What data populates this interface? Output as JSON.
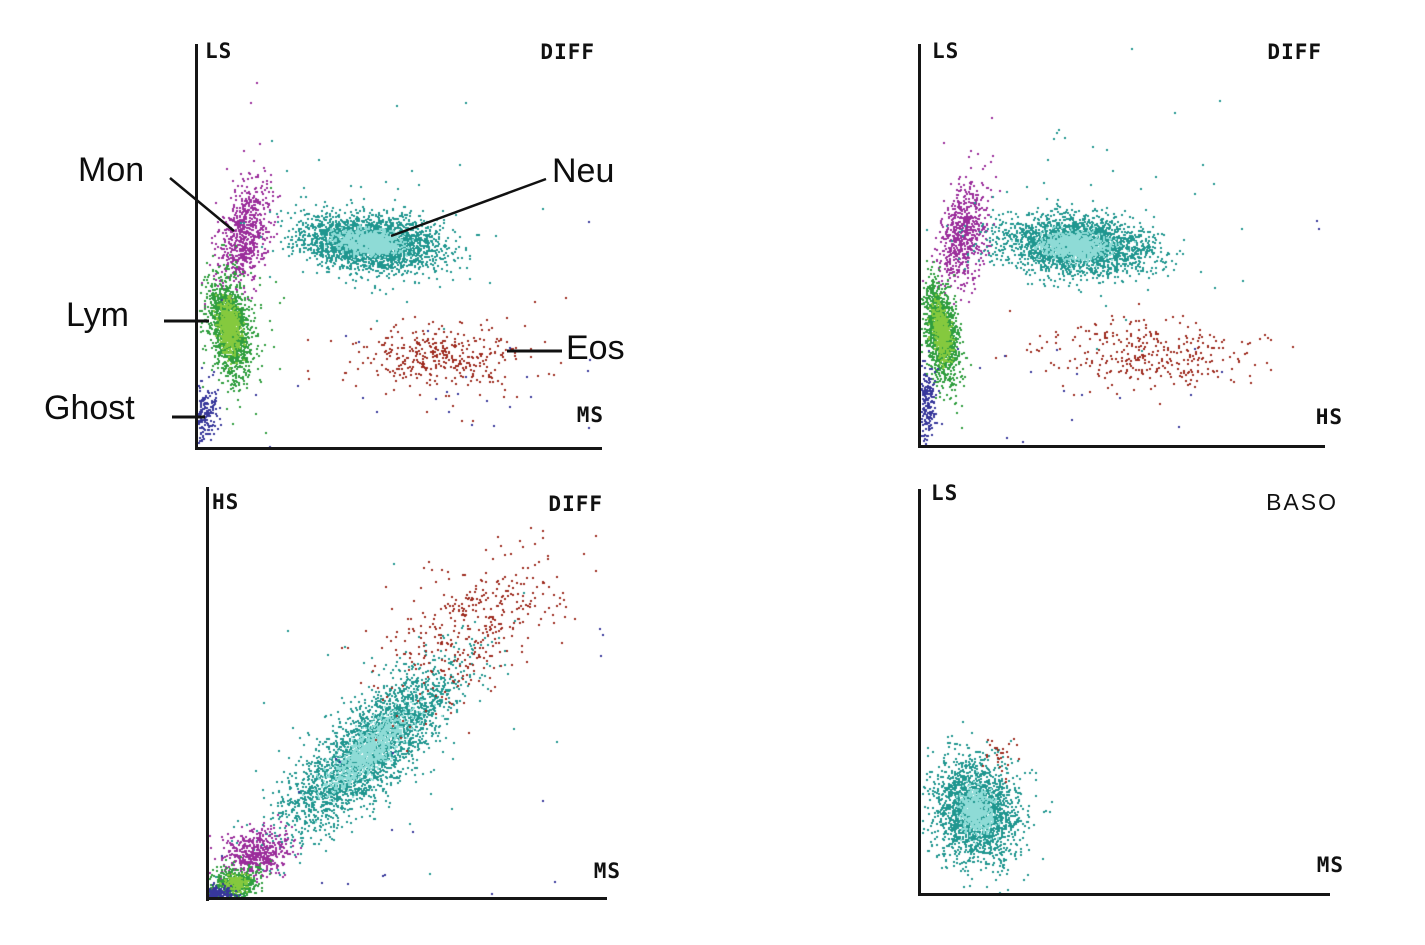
{
  "page": {
    "background": "#ffffff"
  },
  "colors": {
    "axis": "#151515",
    "mon_purple": "#9b2d9b",
    "neu_teal": "#1f968f",
    "neu_core_cyan": "#8edbd6",
    "lym_green": "#2f9e3e",
    "lym_core_green": "#85c93e",
    "ghost_navy": "#37379b",
    "eos_red": "#9e2b1f"
  },
  "chart_data": [
    {
      "type": "scatter",
      "title": "DIFF",
      "xlabel": "MS",
      "ylabel": "LS",
      "marker_px": 2,
      "annotations": [
        {
          "label": "Mon"
        },
        {
          "label": "Lym"
        },
        {
          "label": "Ghost"
        },
        {
          "label": "Neu"
        },
        {
          "label": "Eos"
        }
      ],
      "clusters": [
        {
          "label": "Mon",
          "color": "#9b2d9b",
          "cx": 0.115,
          "cy": 0.53,
          "sx": 0.03,
          "sy": 0.068,
          "angle": -12,
          "n": 700
        },
        {
          "label": "Neu",
          "color": "#1f968f",
          "cx": 0.425,
          "cy": 0.51,
          "sx": 0.085,
          "sy": 0.033,
          "angle": -6,
          "n": 2600,
          "core": {
            "color": "#8edbd6",
            "frac": 0.45,
            "scale": 0.45
          }
        },
        {
          "label": "Lym",
          "color": "#2f9e3e",
          "cx": 0.077,
          "cy": 0.3,
          "sx": 0.024,
          "sy": 0.062,
          "angle": 8,
          "n": 1500,
          "core": {
            "color": "#85c93e",
            "frac": 0.45,
            "scale": 0.5
          }
        },
        {
          "label": "Ghost",
          "color": "#37379b",
          "cx": 0.016,
          "cy": 0.085,
          "sx": 0.016,
          "sy": 0.034,
          "angle": 0,
          "n": 180
        },
        {
          "label": "Eos",
          "color": "#9e2b1f",
          "cx": 0.6,
          "cy": 0.225,
          "sx": 0.105,
          "sy": 0.036,
          "angle": 0,
          "n": 340
        },
        {
          "label": "",
          "color": "#37379b",
          "cx": 0.4,
          "cy": 0.14,
          "sx": 0.3,
          "sy": 0.11,
          "angle": 0,
          "n": 28
        },
        {
          "label": "",
          "color": "#1f968f",
          "cx": 0.45,
          "cy": 0.53,
          "sx": 0.17,
          "sy": 0.13,
          "angle": 0,
          "n": 60
        },
        {
          "label": "",
          "color": "#9b2d9b",
          "cx": 0.13,
          "cy": 0.74,
          "sx": 0.05,
          "sy": 0.13,
          "angle": 0,
          "n": 7
        },
        {
          "label": "",
          "color": "#37379b",
          "cx": 0.965,
          "cy": 0.4,
          "sx": 0.003,
          "sy": 0.22,
          "angle": 0,
          "n": 5
        },
        {
          "label": "",
          "color": "#2f9e3e",
          "cx": 0.11,
          "cy": 0.28,
          "sx": 0.05,
          "sy": 0.1,
          "angle": 0,
          "n": 45
        },
        {
          "label": "",
          "color": "#9e2b1f",
          "cx": 0.6,
          "cy": 0.21,
          "sx": 0.14,
          "sy": 0.07,
          "angle": 0,
          "n": 40
        }
      ]
    },
    {
      "type": "scatter",
      "title": "DIFF",
      "xlabel": "HS",
      "ylabel": "LS",
      "marker_px": 2,
      "annotations": [],
      "clusters": [
        {
          "label": "Mon",
          "color": "#9b2d9b",
          "cx": 0.105,
          "cy": 0.525,
          "sx": 0.028,
          "sy": 0.065,
          "angle": -10,
          "n": 650
        },
        {
          "label": "Neu",
          "color": "#1f968f",
          "cx": 0.38,
          "cy": 0.5,
          "sx": 0.092,
          "sy": 0.036,
          "angle": -4,
          "n": 2600,
          "core": {
            "color": "#8edbd6",
            "frac": 0.45,
            "scale": 0.45
          }
        },
        {
          "label": "Lym",
          "color": "#2f9e3e",
          "cx": 0.05,
          "cy": 0.285,
          "sx": 0.02,
          "sy": 0.062,
          "angle": 8,
          "n": 1300,
          "core": {
            "color": "#85c93e",
            "frac": 0.45,
            "scale": 0.5
          }
        },
        {
          "label": "Ghost",
          "color": "#37379b",
          "cx": 0.015,
          "cy": 0.1,
          "sx": 0.012,
          "sy": 0.05,
          "angle": 0,
          "n": 200
        },
        {
          "label": "Eos",
          "color": "#9e2b1f",
          "cx": 0.57,
          "cy": 0.23,
          "sx": 0.13,
          "sy": 0.042,
          "angle": -3,
          "n": 330
        },
        {
          "label": "",
          "color": "#1f968f",
          "cx": 0.42,
          "cy": 0.56,
          "sx": 0.18,
          "sy": 0.14,
          "angle": 0,
          "n": 55
        },
        {
          "label": "",
          "color": "#37379b",
          "cx": 0.33,
          "cy": 0.12,
          "sx": 0.24,
          "sy": 0.1,
          "angle": 0,
          "n": 18
        },
        {
          "label": "",
          "color": "#9b2d9b",
          "cx": 0.1,
          "cy": 0.77,
          "sx": 0.04,
          "sy": 0.11,
          "angle": 0,
          "n": 6
        },
        {
          "label": "",
          "color": "#37379b",
          "cx": 0.985,
          "cy": 0.55,
          "sx": 0.004,
          "sy": 0.02,
          "angle": 0,
          "n": 2
        }
      ]
    },
    {
      "type": "scatter",
      "title": "DIFF",
      "xlabel": "MS",
      "ylabel": "HS",
      "marker_px": 2,
      "annotations": [],
      "clusters": [
        {
          "label": "Neu",
          "color": "#1f968f",
          "cx": 0.4,
          "cy": 0.36,
          "sx": 0.145,
          "sy": 0.047,
          "angle": 42,
          "n": 2700,
          "core": {
            "color": "#8edbd6",
            "frac": 0.4,
            "scale": 0.45
          }
        },
        {
          "label": "Eos",
          "color": "#9e2b1f",
          "cx": 0.655,
          "cy": 0.655,
          "sx": 0.135,
          "sy": 0.075,
          "angle": 38,
          "n": 400
        },
        {
          "label": "Mon",
          "color": "#9b2d9b",
          "cx": 0.115,
          "cy": 0.105,
          "sx": 0.045,
          "sy": 0.03,
          "angle": 15,
          "n": 480
        },
        {
          "label": "Lym",
          "color": "#2f9e3e",
          "cx": 0.066,
          "cy": 0.035,
          "sx": 0.032,
          "sy": 0.02,
          "angle": 10,
          "n": 480,
          "core": {
            "color": "#85c93e",
            "frac": 0.4,
            "scale": 0.5
          }
        },
        {
          "label": "Ghost",
          "color": "#37379b",
          "cx": 0.018,
          "cy": 0.008,
          "sx": 0.022,
          "sy": 0.01,
          "angle": 0,
          "n": 230
        },
        {
          "label": "",
          "color": "#37379b",
          "cx": 0.45,
          "cy": 0.12,
          "sx": 0.28,
          "sy": 0.1,
          "angle": 0,
          "n": 20
        },
        {
          "label": "",
          "color": "#37379b",
          "cx": 0.985,
          "cy": 0.62,
          "sx": 0.004,
          "sy": 0.025,
          "angle": 0,
          "n": 3
        },
        {
          "label": "",
          "color": "#1f968f",
          "cx": 0.42,
          "cy": 0.4,
          "sx": 0.22,
          "sy": 0.17,
          "angle": 40,
          "n": 36
        }
      ]
    },
    {
      "type": "scatter",
      "title": "BASO",
      "xlabel": "MS",
      "ylabel": "LS",
      "marker_px": 2,
      "annotations": [],
      "clusters": [
        {
          "label": "Neu",
          "color": "#1f968f",
          "cx": 0.135,
          "cy": 0.205,
          "sx": 0.052,
          "sy": 0.066,
          "angle": 15,
          "n": 2000,
          "core": {
            "color": "#8edbd6",
            "frac": 0.35,
            "scale": 0.42
          }
        },
        {
          "label": "Eos",
          "color": "#9e2b1f",
          "cx": 0.2,
          "cy": 0.35,
          "sx": 0.022,
          "sy": 0.026,
          "angle": 0,
          "n": 28
        }
      ]
    }
  ]
}
